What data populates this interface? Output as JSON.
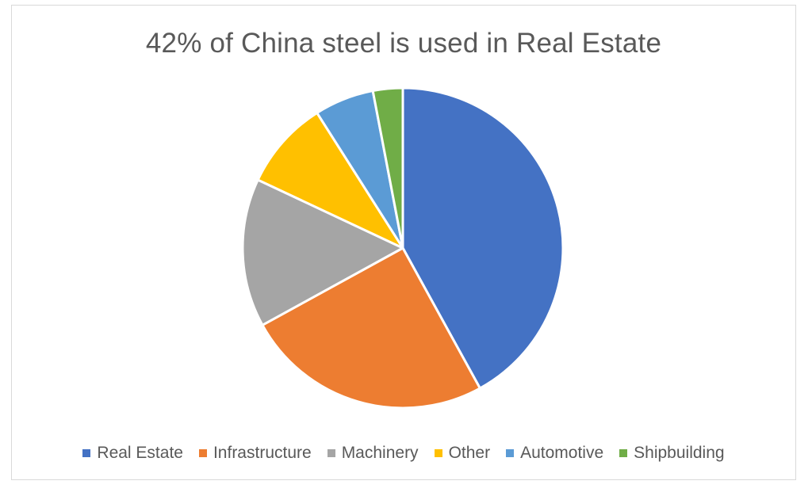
{
  "chart_data": {
    "type": "pie",
    "title": "42% of China steel is used in Real Estate",
    "categories": [
      "Real Estate",
      "Infrastructure",
      "Machinery",
      "Other",
      "Automotive",
      "Shipbuilding"
    ],
    "values": [
      42,
      25,
      15,
      9,
      6,
      3
    ],
    "colors": [
      "#4472C4",
      "#ED7D31",
      "#A5A5A5",
      "#FFC000",
      "#5B9BD5",
      "#70AD47"
    ],
    "legend_position": "bottom",
    "start_angle": "top, clockwise"
  }
}
